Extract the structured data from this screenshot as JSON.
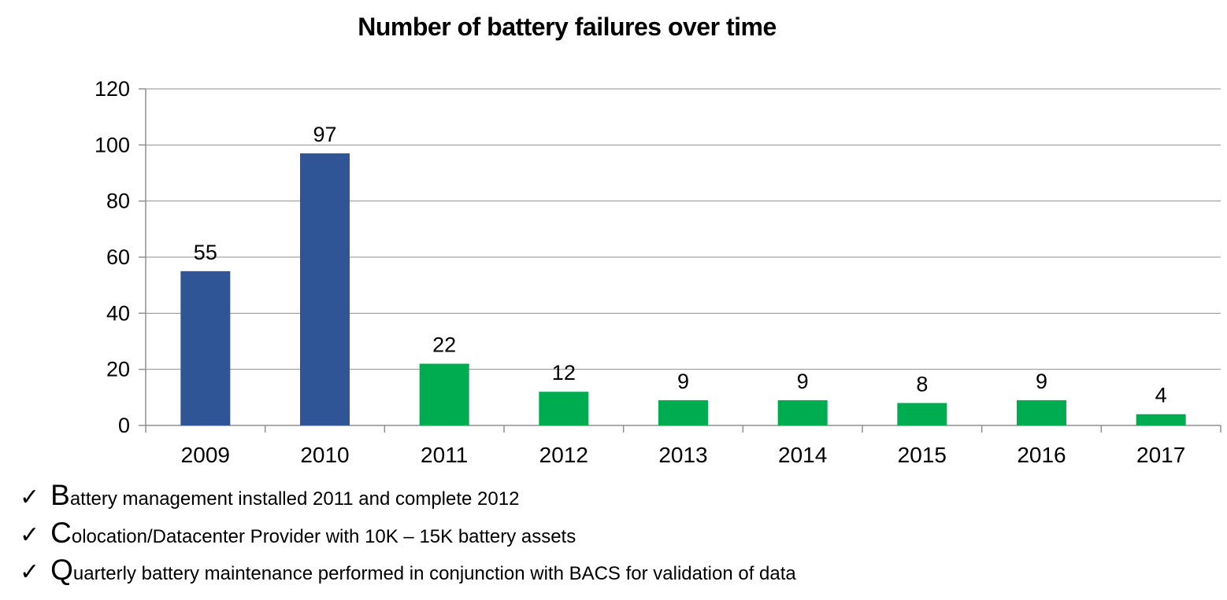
{
  "chart_data": {
    "type": "bar",
    "title": "Number of battery failures over time",
    "categories": [
      "2009",
      "2010",
      "2011",
      "2012",
      "2013",
      "2014",
      "2015",
      "2016",
      "2017"
    ],
    "values": [
      55,
      97,
      22,
      12,
      9,
      9,
      8,
      9,
      4
    ],
    "bar_colors": [
      "#2F5597",
      "#2F5597",
      "#00AC50",
      "#00AC50",
      "#00AC50",
      "#00AC50",
      "#00AC50",
      "#00AC50",
      "#00AC50"
    ],
    "xlabel": "",
    "ylabel": "",
    "ylim": [
      0,
      120
    ],
    "yticks": [
      0,
      20,
      40,
      60,
      80,
      100,
      120
    ],
    "grid": true,
    "legend": "none",
    "colors": {
      "blue_series": "#2F5597",
      "green_series": "#00AC50",
      "gridline": "#8F8F8F",
      "axis_line": "#8F8F8F",
      "text": "#000000"
    }
  },
  "bullets": {
    "marker": "✓",
    "items": [
      "Battery management installed 2011 and complete 2012",
      "Colocation/Datacenter Provider with 10K – 15K battery assets",
      "Quarterly battery maintenance performed in conjunction with BACS for validation of data"
    ]
  }
}
